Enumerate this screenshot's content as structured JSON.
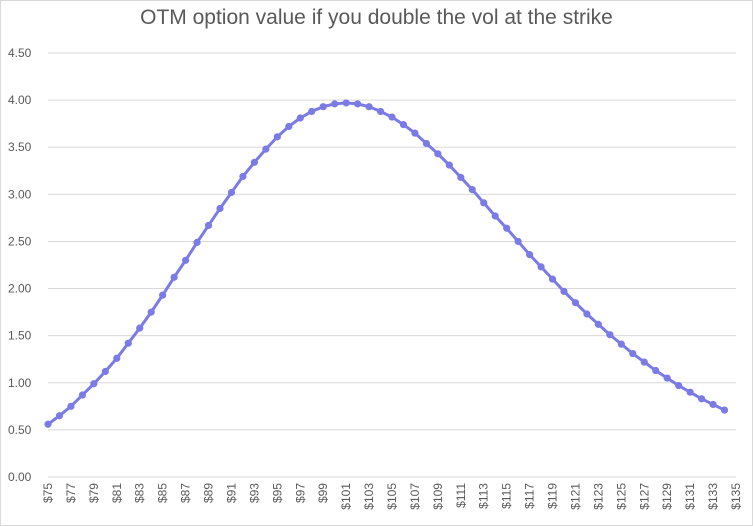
{
  "chart_data": {
    "type": "line",
    "title": "OTM option value if you double the vol at the strike",
    "xlabel": "",
    "ylabel": "",
    "ylim": [
      0,
      4.5
    ],
    "y_ticks": [
      "0.00",
      "0.50",
      "1.00",
      "1.50",
      "2.00",
      "2.50",
      "3.00",
      "3.50",
      "4.00",
      "4.50"
    ],
    "x_tick_labels": [
      "$75",
      "$77",
      "$79",
      "$81",
      "$83",
      "$85",
      "$87",
      "$89",
      "$91",
      "$93",
      "$95",
      "$97",
      "$99",
      "$101",
      "$103",
      "$105",
      "$107",
      "$109",
      "$111",
      "$113",
      "$115",
      "$117",
      "$119",
      "$121",
      "$123",
      "$125",
      "$127",
      "$129",
      "$131",
      "$133",
      "$135"
    ],
    "grid": true,
    "legend": "none",
    "colors": {
      "series": "#7b7be6",
      "grid": "#d9d9d9",
      "text": "#595959"
    },
    "series": [
      {
        "x": [
          75,
          76,
          77,
          78,
          79,
          80,
          81,
          82,
          83,
          84,
          85,
          86,
          87,
          88,
          89,
          90,
          91,
          92,
          93,
          94,
          95,
          96,
          97,
          98,
          99,
          100,
          101,
          102,
          103,
          104,
          105,
          106,
          107,
          108,
          109,
          110,
          111,
          112,
          113,
          114,
          115,
          116,
          117,
          118,
          119,
          120,
          121,
          122,
          123,
          124,
          125,
          126,
          127,
          128,
          129,
          130,
          131,
          132,
          133,
          134
        ],
        "values": [
          0.56,
          0.65,
          0.75,
          0.87,
          0.99,
          1.12,
          1.26,
          1.42,
          1.58,
          1.75,
          1.93,
          2.12,
          2.3,
          2.49,
          2.67,
          2.85,
          3.02,
          3.19,
          3.34,
          3.48,
          3.61,
          3.72,
          3.81,
          3.88,
          3.93,
          3.96,
          3.97,
          3.96,
          3.93,
          3.88,
          3.82,
          3.74,
          3.65,
          3.54,
          3.43,
          3.31,
          3.18,
          3.05,
          2.91,
          2.77,
          2.64,
          2.5,
          2.36,
          2.23,
          2.1,
          1.97,
          1.85,
          1.73,
          1.62,
          1.51,
          1.41,
          1.31,
          1.22,
          1.13,
          1.05,
          0.97,
          0.9,
          0.83,
          0.77,
          0.71
        ]
      }
    ]
  }
}
